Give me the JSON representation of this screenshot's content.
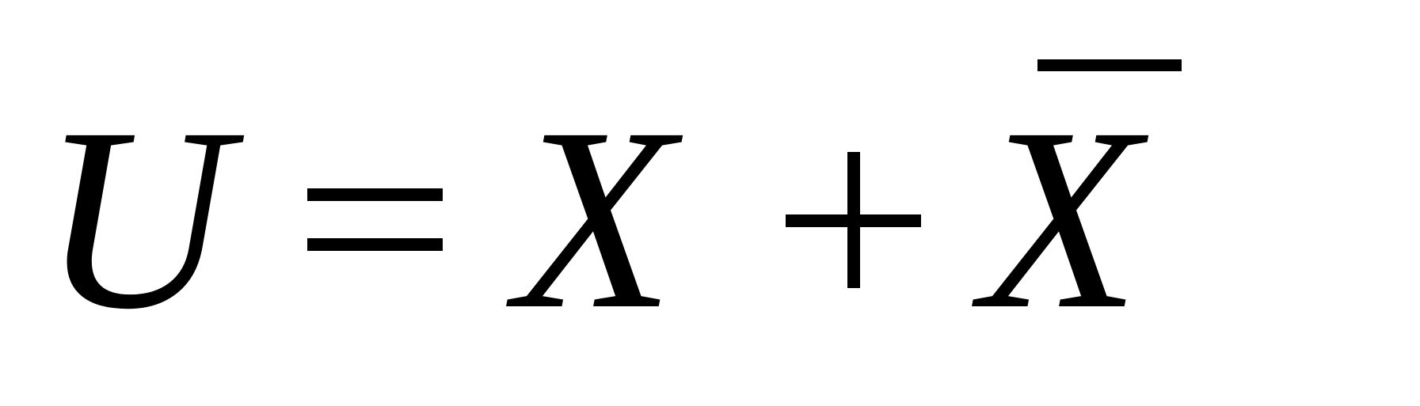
{
  "equation": {
    "lhs": "U",
    "relation": "=",
    "term1": "X",
    "operator": "+",
    "term2": "X",
    "term2_decoration": "overline"
  },
  "colors": {
    "ink": "#000000",
    "background": "#ffffff"
  }
}
